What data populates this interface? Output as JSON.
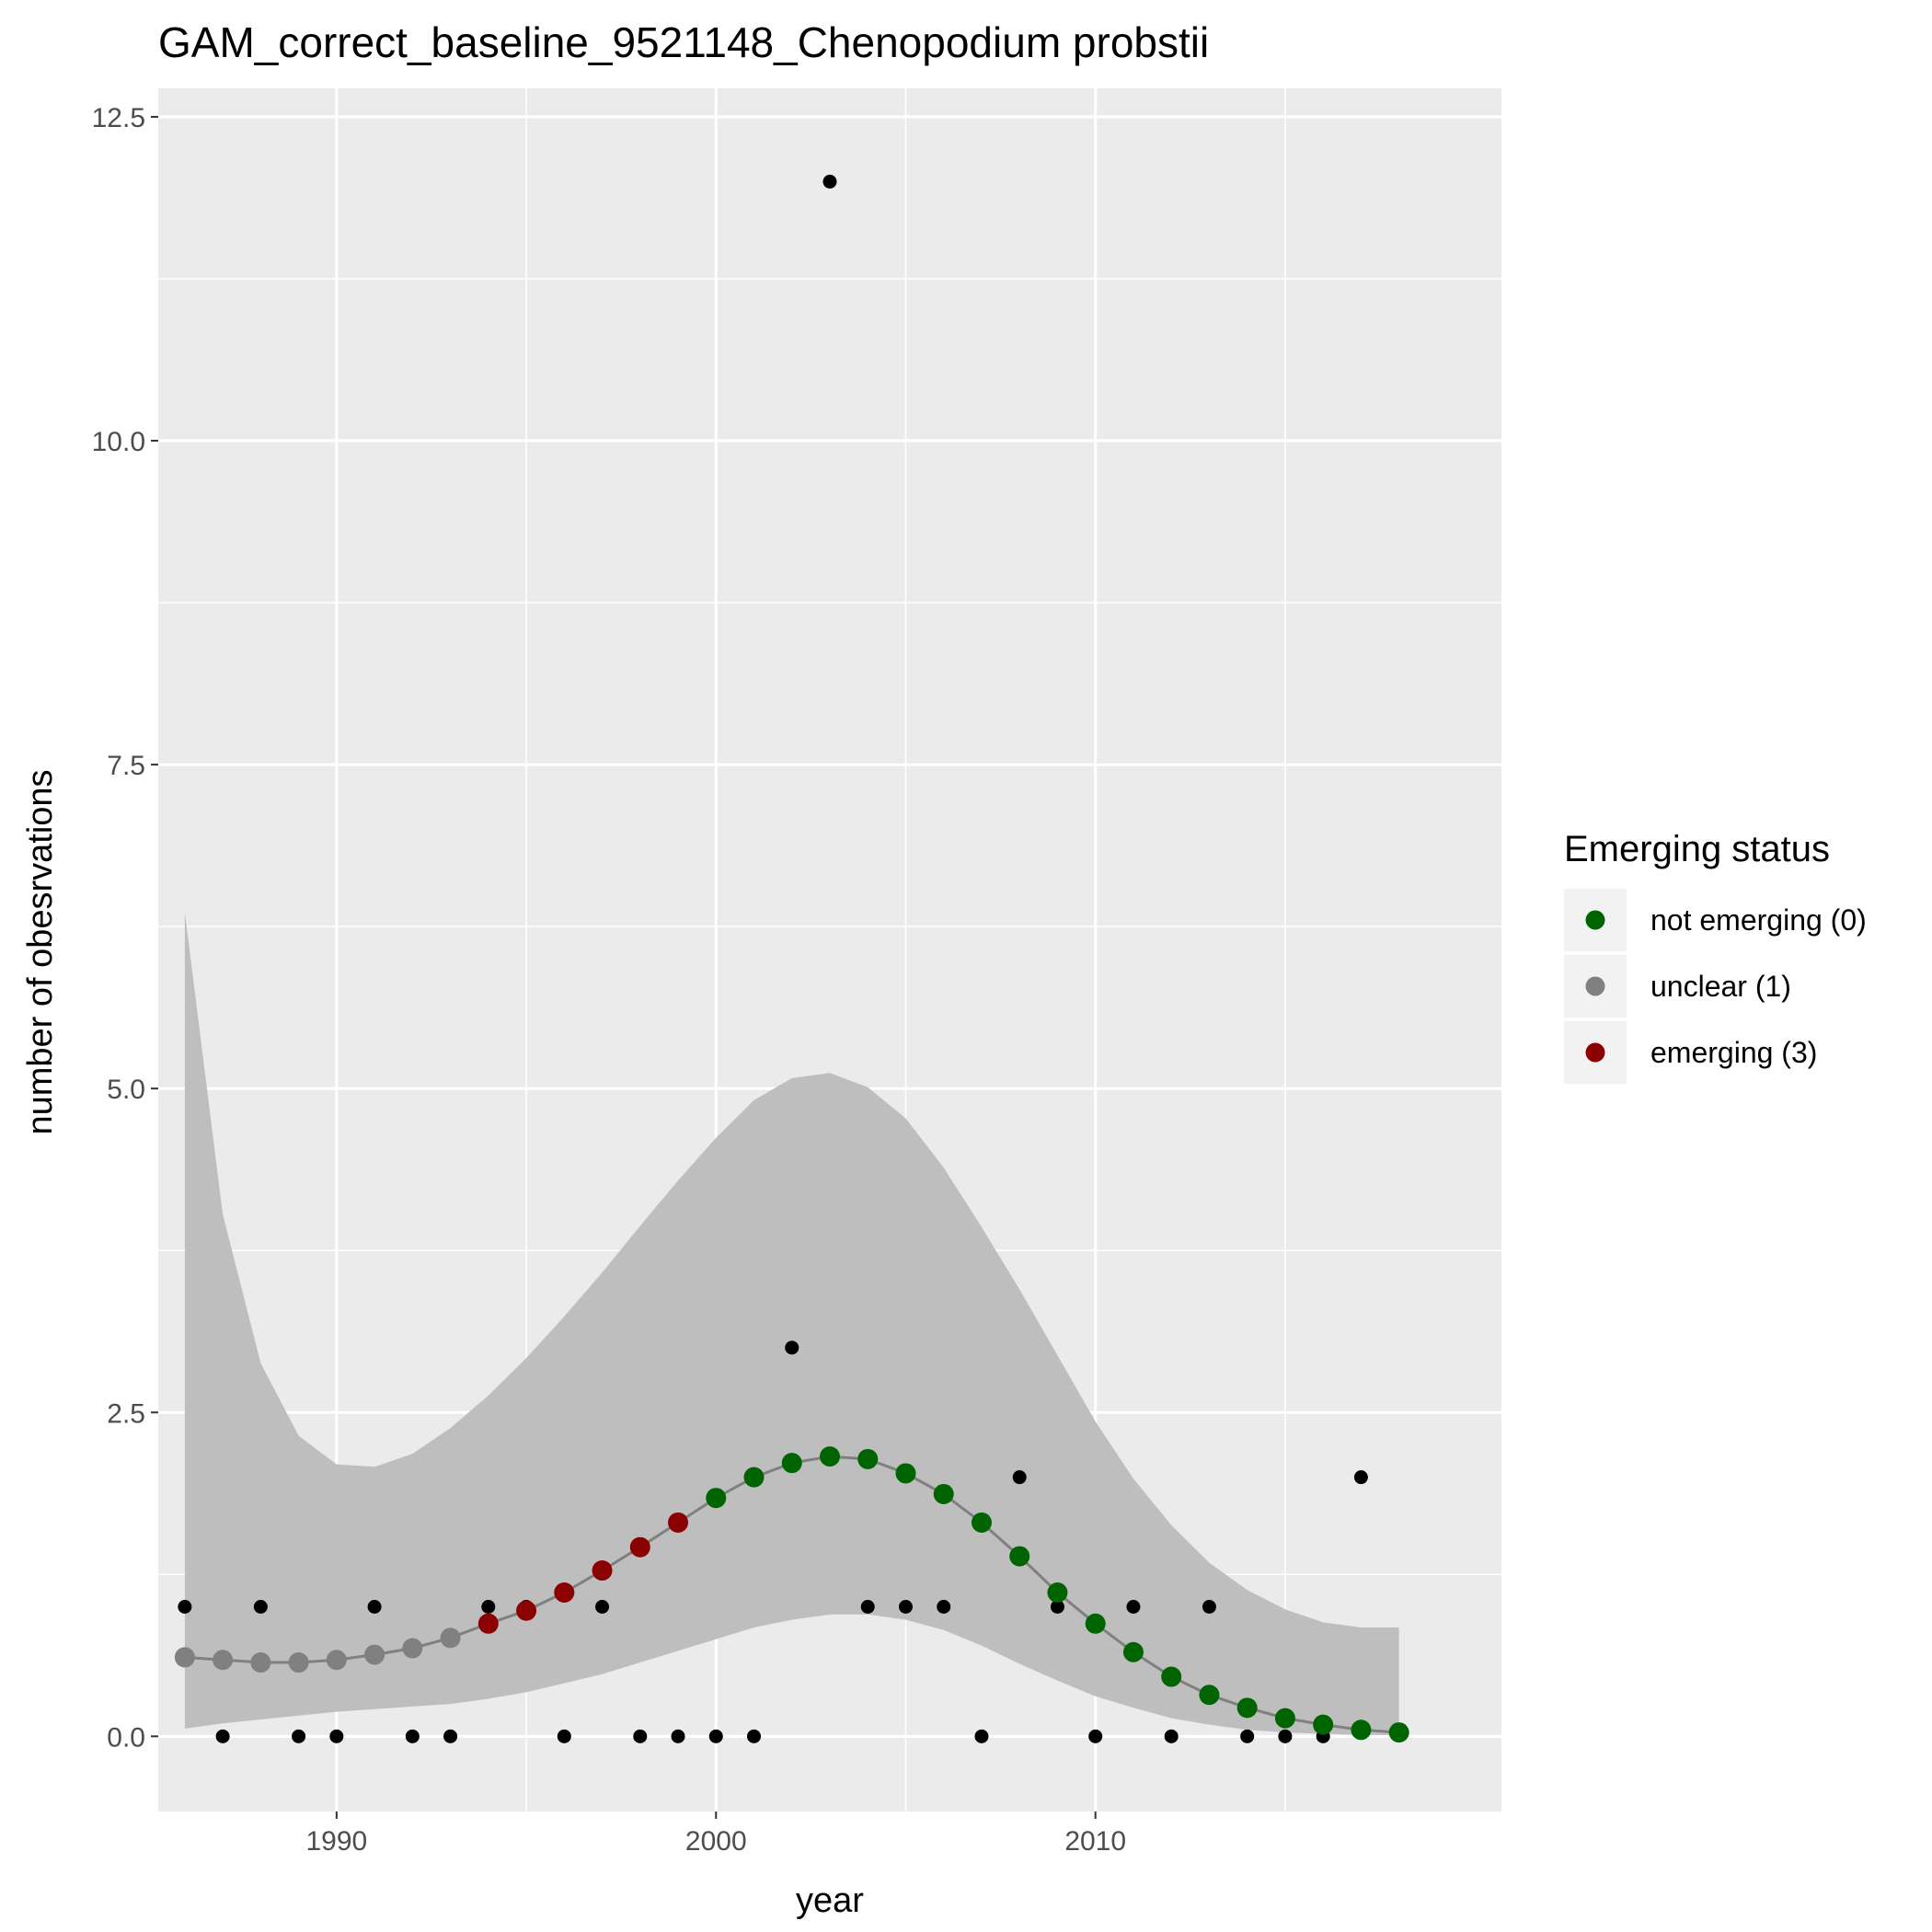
{
  "chart_data": {
    "type": "scatter",
    "title": "GAM_correct_baseline_9521148_Chenopodium probstii",
    "xlabel": "year",
    "ylabel": "number of obesrvations",
    "xlim": [
      1985.3,
      2020.7
    ],
    "ylim": [
      -0.58,
      12.72
    ],
    "x_ticks": [
      1990,
      2000,
      2010
    ],
    "x_tick_labels": [
      "1990",
      "2000",
      "2010"
    ],
    "y_ticks": [
      0,
      2.5,
      5,
      7.5,
      10,
      12.5
    ],
    "y_tick_labels": [
      "0.0",
      "2.5",
      "5.0",
      "7.5",
      "10.0",
      "12.5"
    ],
    "grid": true,
    "background": "#ebebeb",
    "legend": {
      "title": "Emerging status",
      "position": "right",
      "entries": [
        {
          "label": "not emerging (0)",
          "color": "#006400"
        },
        {
          "label": "unclear (1)",
          "color": "#808080"
        },
        {
          "label": "emerging (3)",
          "color": "#8b0000"
        }
      ]
    },
    "observed": {
      "color": "#000000",
      "x": [
        1986,
        1987,
        1988,
        1989,
        1990,
        1991,
        1992,
        1993,
        1994,
        1995,
        1996,
        1997,
        1998,
        1999,
        2000,
        2001,
        2002,
        2003,
        2004,
        2005,
        2006,
        2007,
        2008,
        2009,
        2010,
        2011,
        2012,
        2013,
        2014,
        2015,
        2016,
        2017
      ],
      "y": [
        1,
        0,
        1,
        0,
        0,
        1,
        0,
        0,
        1,
        1,
        0,
        1,
        0,
        0,
        0,
        0,
        3,
        12,
        1,
        1,
        1,
        0,
        2,
        1,
        0,
        1,
        0,
        1,
        0,
        0,
        0,
        2
      ]
    },
    "fit": {
      "line_color": "#808080",
      "ribbon_color": "#bebebe",
      "x": [
        1986,
        1987,
        1988,
        1989,
        1990,
        1991,
        1992,
        1993,
        1994,
        1995,
        1996,
        1997,
        1998,
        1999,
        2000,
        2001,
        2002,
        2003,
        2004,
        2005,
        2006,
        2007,
        2008,
        2009,
        2010,
        2011,
        2012,
        2013,
        2014,
        2015,
        2016,
        2017,
        2018
      ],
      "y": [
        0.61,
        0.59,
        0.57,
        0.57,
        0.59,
        0.63,
        0.68,
        0.76,
        0.87,
        0.97,
        1.11,
        1.28,
        1.46,
        1.65,
        1.84,
        2.0,
        2.11,
        2.16,
        2.14,
        2.03,
        1.87,
        1.65,
        1.39,
        1.11,
        0.87,
        0.65,
        0.46,
        0.32,
        0.22,
        0.14,
        0.09,
        0.05,
        0.03
      ],
      "lower": [
        0.06,
        0.1,
        0.13,
        0.16,
        0.19,
        0.21,
        0.23,
        0.25,
        0.29,
        0.34,
        0.41,
        0.48,
        0.57,
        0.66,
        0.75,
        0.84,
        0.9,
        0.94,
        0.94,
        0.9,
        0.82,
        0.7,
        0.56,
        0.43,
        0.31,
        0.22,
        0.14,
        0.09,
        0.05,
        0.03,
        0.02,
        0.01,
        0.01
      ],
      "upper": [
        6.36,
        4.03,
        2.88,
        2.32,
        2.1,
        2.08,
        2.18,
        2.38,
        2.63,
        2.92,
        3.24,
        3.58,
        3.94,
        4.29,
        4.62,
        4.91,
        5.08,
        5.12,
        5.01,
        4.77,
        4.39,
        3.93,
        3.45,
        2.94,
        2.43,
        1.99,
        1.63,
        1.34,
        1.13,
        0.98,
        0.88,
        0.84,
        0.84
      ],
      "status": [
        1,
        1,
        1,
        1,
        1,
        1,
        1,
        1,
        3,
        3,
        3,
        3,
        3,
        3,
        0,
        0,
        0,
        0,
        0,
        0,
        0,
        0,
        0,
        0,
        0,
        0,
        0,
        0,
        0,
        0,
        0,
        0,
        0
      ]
    }
  }
}
